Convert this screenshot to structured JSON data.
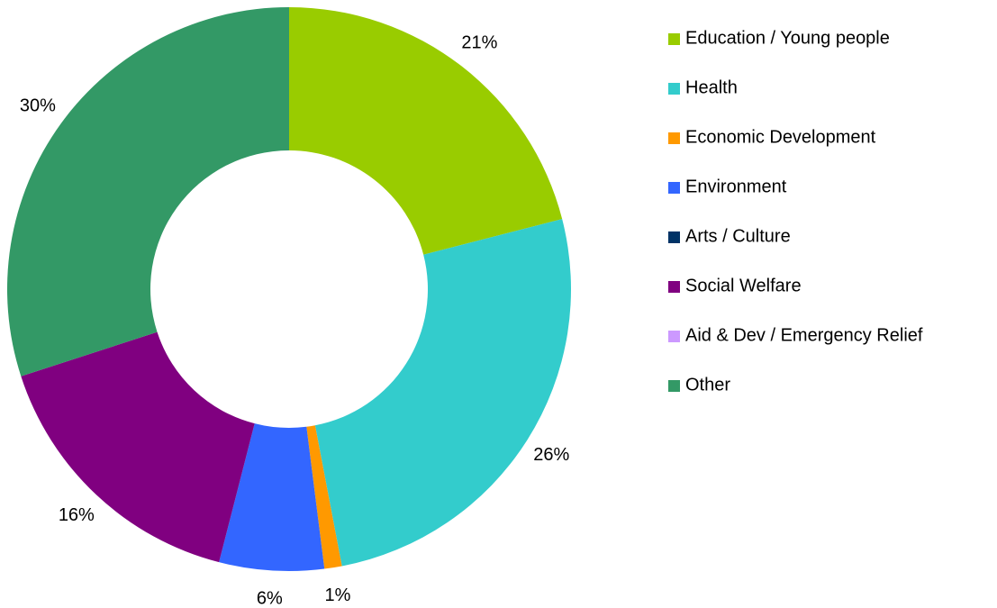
{
  "chart_data": {
    "type": "donut",
    "categories": [
      "Education / Young people",
      "Health",
      "Economic Development",
      "Environment",
      "Arts / Culture",
      "Social Welfare",
      "Aid & Dev / Emergency Relief",
      "Other"
    ],
    "values": [
      21,
      26,
      1,
      6,
      0,
      16,
      0,
      30
    ],
    "value_labels": [
      "21%",
      "26%",
      "1%",
      "6%",
      null,
      "16%",
      null,
      "30%"
    ],
    "colors": [
      "#99cc00",
      "#33cccc",
      "#ff9900",
      "#3366ff",
      "#003366",
      "#800080",
      "#cc99ff",
      "#339966"
    ],
    "legend": "right"
  }
}
